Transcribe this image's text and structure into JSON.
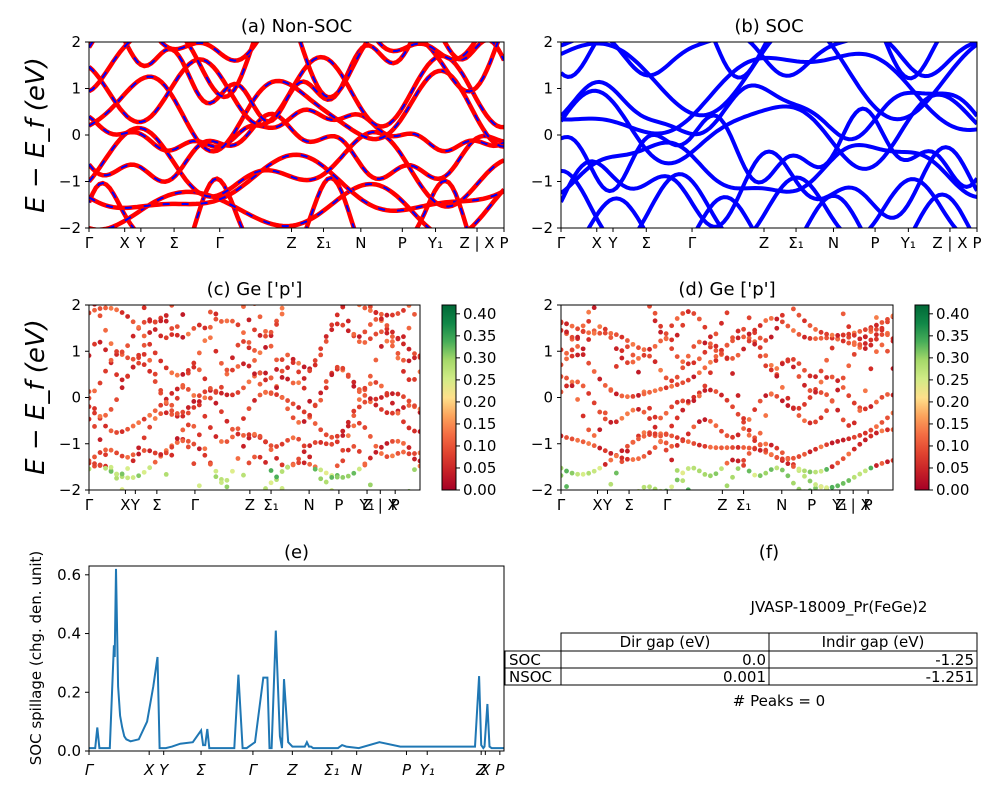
{
  "chart_data": [
    {
      "panel": "a",
      "type": "line",
      "title": "(a) Non-SOC",
      "ylabel": "E − E_f (eV)",
      "ylim": [
        -2,
        2
      ],
      "yticks": [
        "2",
        "1",
        "0",
        "−1",
        "−2"
      ],
      "kpath_labels": [
        "Γ",
        "X",
        "Y",
        "Σ",
        "Γ",
        "Z",
        "Σ₁",
        "N",
        "P",
        "Y₁",
        "Z | X",
        "P"
      ],
      "series": [
        {
          "style": "red solid with blue dashes",
          "color": "#ff0000",
          "dash_color": "#0000ff"
        }
      ]
    },
    {
      "panel": "b",
      "type": "line",
      "title": "(b) SOC",
      "ylim": [
        -2,
        2
      ],
      "yticks": [
        "2",
        "1",
        "0",
        "−1",
        "−2"
      ],
      "kpath_labels": [
        "Γ",
        "X",
        "Y",
        "Σ",
        "Γ",
        "Z",
        "Σ₁",
        "N",
        "P",
        "Y₁",
        "Z | X",
        "P"
      ],
      "series": [
        {
          "style": "solid",
          "color": "#0000ff"
        }
      ]
    },
    {
      "panel": "c",
      "type": "scatter",
      "title": "(c)  Ge ['p']",
      "ylabel": "E − E_f (eV)",
      "ylim": [
        -2,
        2
      ],
      "yticks": [
        "2",
        "1",
        "0",
        "−1",
        "−2"
      ],
      "kpath_labels": [
        "Γ",
        "X",
        "Y",
        "Σ",
        "Γ",
        "Z",
        "Σ₁",
        "N",
        "P",
        "Y₁",
        "Z | X",
        "P"
      ],
      "colorbar": {
        "colormap": "RdYlGn",
        "range": [
          0.0,
          0.42
        ],
        "ticks": [
          "0.00",
          "0.05",
          "0.10",
          "0.15",
          "0.20",
          "0.25",
          "0.30",
          "0.35",
          "0.40"
        ]
      }
    },
    {
      "panel": "d",
      "type": "scatter",
      "title": "(d) Ge ['p']",
      "ylim": [
        -2,
        2
      ],
      "yticks": [
        "2",
        "1",
        "0",
        "−1",
        "−2"
      ],
      "kpath_labels": [
        "Γ",
        "X",
        "Y",
        "Σ",
        "Γ",
        "Z",
        "Σ₁",
        "N",
        "P",
        "Y₁",
        "Z | X",
        "P"
      ],
      "colorbar": {
        "colormap": "RdYlGn",
        "range": [
          0.0,
          0.42
        ],
        "ticks": [
          "0.00",
          "0.05",
          "0.10",
          "0.15",
          "0.20",
          "0.25",
          "0.30",
          "0.35",
          "0.40"
        ]
      }
    },
    {
      "panel": "e",
      "type": "line",
      "title": "(e)",
      "ylabel": "SOC spillage (chg. den. unit)",
      "ylim": [
        0,
        0.63
      ],
      "yticks": [
        "0.0",
        "0.2",
        "0.4",
        "0.6"
      ],
      "kpath_labels": [
        "Γ",
        "X",
        "Y",
        "Σ",
        "Γ",
        "Z",
        "Σ₁",
        "N",
        "P",
        "Y₁",
        "Z",
        "X",
        "P"
      ],
      "series": [
        {
          "color": "#1f77b4",
          "x": [
            0.0,
            0.015,
            0.02,
            0.025,
            0.03,
            0.05,
            0.06,
            0.062,
            0.065,
            0.07,
            0.075,
            0.08,
            0.085,
            0.09,
            0.1,
            0.12,
            0.14,
            0.155,
            0.165,
            0.17,
            0.175,
            0.18,
            0.185,
            0.2,
            0.22,
            0.25,
            0.27,
            0.275,
            0.28,
            0.285,
            0.29,
            0.3,
            0.32,
            0.35,
            0.36,
            0.37,
            0.375,
            0.38,
            0.4,
            0.42,
            0.43,
            0.435,
            0.44,
            0.45,
            0.46,
            0.465,
            0.47,
            0.48,
            0.49,
            0.495,
            0.5,
            0.505,
            0.51,
            0.52,
            0.525,
            0.53,
            0.535,
            0.54,
            0.56,
            0.6,
            0.61,
            0.62,
            0.65,
            0.7,
            0.75,
            0.78,
            0.785,
            0.79,
            0.8,
            0.85,
            0.9,
            0.93,
            0.94,
            0.945,
            0.95,
            0.953,
            0.96,
            0.965,
            0.97,
            0.98,
            1.0
          ],
          "y": [
            0.01,
            0.01,
            0.08,
            0.01,
            0.01,
            0.01,
            0.36,
            0.32,
            0.62,
            0.22,
            0.12,
            0.08,
            0.05,
            0.04,
            0.033,
            0.04,
            0.1,
            0.22,
            0.32,
            0.01,
            0.01,
            0.01,
            0.01,
            0.015,
            0.025,
            0.03,
            0.07,
            0.02,
            0.02,
            0.075,
            0.01,
            0.01,
            0.01,
            0.01,
            0.26,
            0.01,
            0.01,
            0.01,
            0.03,
            0.25,
            0.25,
            0.01,
            0.01,
            0.41,
            0.05,
            0.01,
            0.245,
            0.03,
            0.015,
            0.015,
            0.015,
            0.015,
            0.015,
            0.015,
            0.03,
            0.015,
            0.015,
            0.01,
            0.01,
            0.01,
            0.02,
            0.015,
            0.01,
            0.03,
            0.015,
            0.015,
            0.015,
            0.015,
            0.015,
            0.015,
            0.015,
            0.015,
            0.255,
            0.02,
            0.01,
            0.015,
            0.16,
            0.015,
            0.01,
            0.01,
            0.01
          ]
        }
      ]
    }
  ],
  "panel_f": {
    "title": "(f)",
    "material": "JVASP-18009_Pr(FeGe)2",
    "headers": [
      "",
      "Dir gap (eV)",
      "Indir gap (eV)"
    ],
    "rows": [
      [
        "SOC",
        "0.0",
        "-1.25"
      ],
      [
        "NSOC",
        "0.001",
        "-1.251"
      ]
    ],
    "peaks": "# Peaks = 0"
  }
}
